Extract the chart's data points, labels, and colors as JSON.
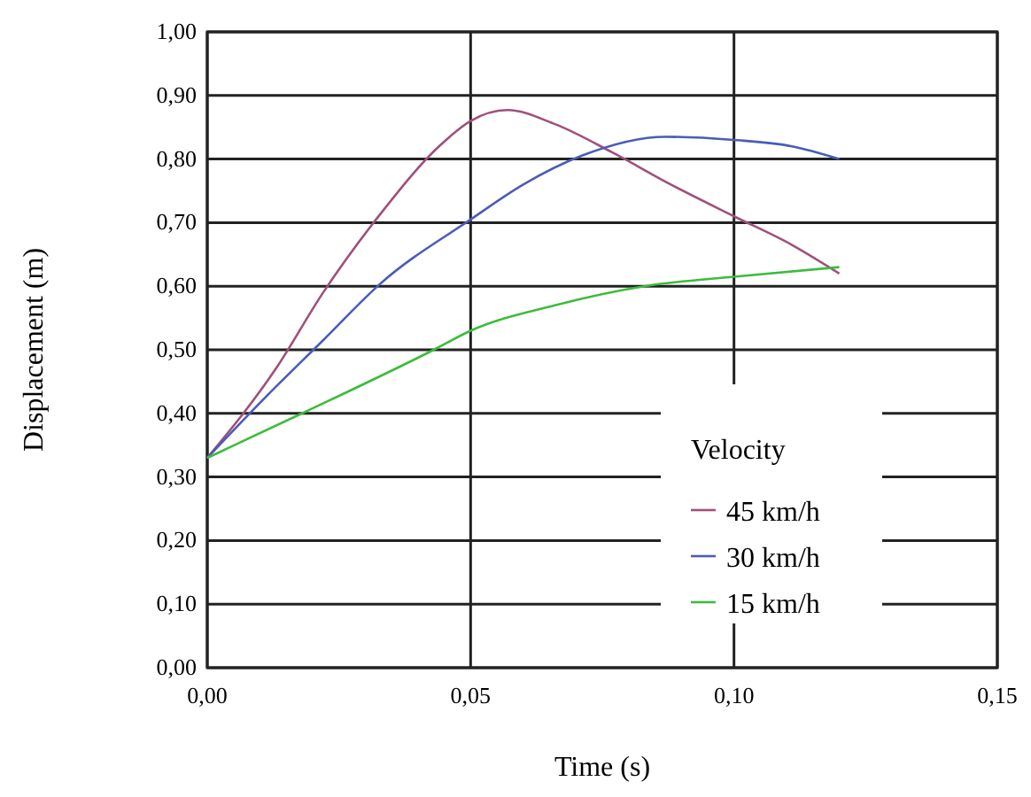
{
  "chart_data": {
    "type": "line",
    "xlabel": "Time (s)",
    "ylabel": "Displacement (m)",
    "legend_title": "Velocity",
    "legend": "bottom right",
    "grid": true,
    "marker": "none",
    "line_style": "solid",
    "xlim": [
      0,
      0.15
    ],
    "xticks": [
      {
        "value": 0,
        "label": "0,00"
      },
      {
        "value": 0.05,
        "label": "0,05"
      },
      {
        "value": 0.1,
        "label": "0,10"
      },
      {
        "value": 0.15,
        "label": "0,15"
      }
    ],
    "ylim": [
      0,
      1
    ],
    "yticks": [
      {
        "value": 0,
        "label": "0,00"
      },
      {
        "value": 0.1,
        "label": "0,10"
      },
      {
        "value": 0.2,
        "label": "0,20"
      },
      {
        "value": 0.3,
        "label": "0,30"
      },
      {
        "value": 0.4,
        "label": "0,40"
      },
      {
        "value": 0.5,
        "label": "0,50"
      },
      {
        "value": 0.6,
        "label": "0,60"
      },
      {
        "value": 0.7,
        "label": "0,70"
      },
      {
        "value": 0.8,
        "label": "0,80"
      },
      {
        "value": 0.9,
        "label": "0,90"
      },
      {
        "value": 1,
        "label": "1,00"
      }
    ],
    "series": [
      {
        "name": "45 km/h",
        "color": "#a0507a",
        "x": [
          0,
          0.013,
          0.022,
          0.033,
          0.044,
          0.05,
          0.057,
          0.066,
          0.077,
          0.088,
          0.1,
          0.111,
          0.12
        ],
        "values": [
          0.33,
          0.47,
          0.59,
          0.715,
          0.82,
          0.86,
          0.877,
          0.855,
          0.81,
          0.76,
          0.71,
          0.665,
          0.62
        ]
      },
      {
        "name": "30 km/h",
        "color": "#4a5cb8",
        "x": [
          0,
          0.011,
          0.022,
          0.033,
          0.05,
          0.06,
          0.071,
          0.087,
          0.1,
          0.111,
          0.12
        ],
        "values": [
          0.33,
          0.425,
          0.515,
          0.605,
          0.705,
          0.76,
          0.805,
          0.835,
          0.83,
          0.82,
          0.8
        ]
      },
      {
        "name": "15 km/h",
        "color": "#3cbc3c",
        "x": [
          0,
          0.018,
          0.043,
          0.05,
          0.066,
          0.083,
          0.1,
          0.12
        ],
        "values": [
          0.33,
          0.4,
          0.5,
          0.53,
          0.57,
          0.6,
          0.615,
          0.63
        ]
      }
    ]
  }
}
